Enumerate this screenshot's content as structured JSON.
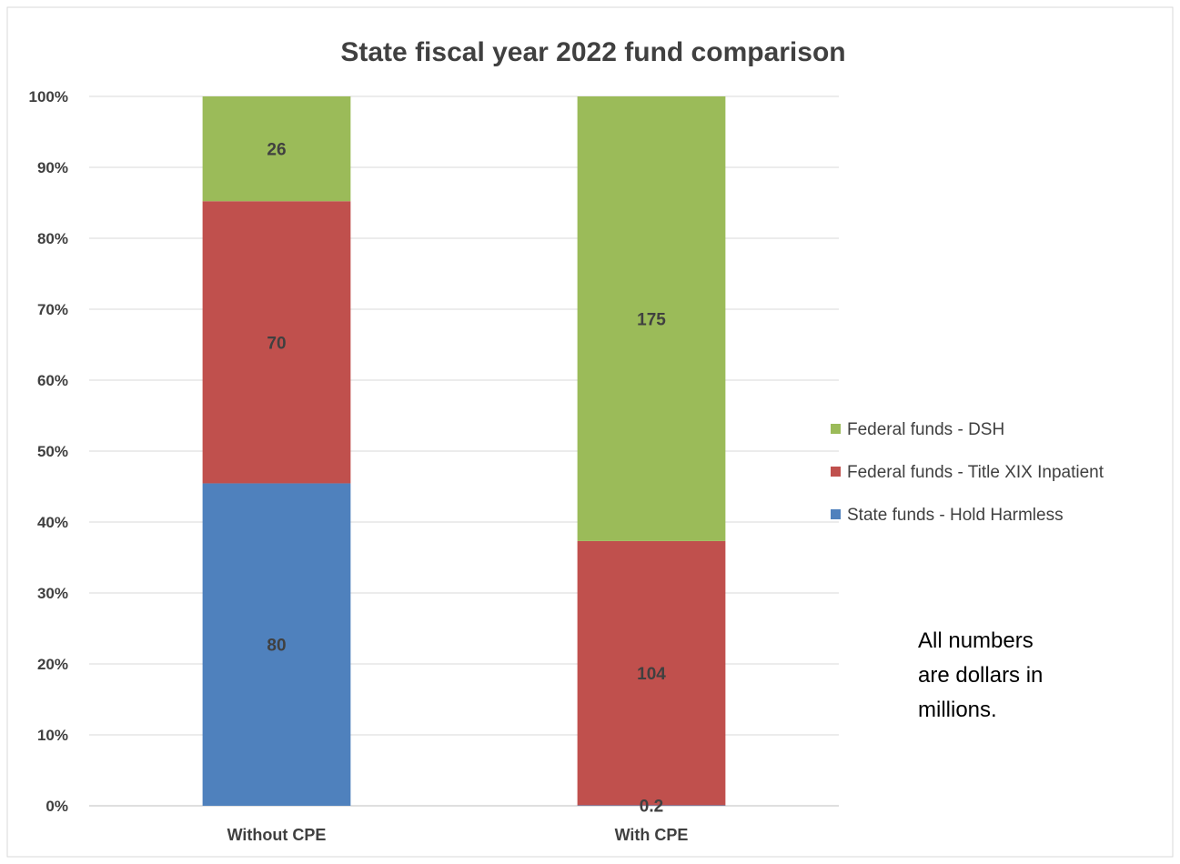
{
  "chart_data": {
    "type": "bar",
    "stacked": "percent",
    "title": "State fiscal year 2022 fund comparison",
    "categories": [
      "Without CPE",
      "With CPE"
    ],
    "series": [
      {
        "name": "State funds - Hold Harmless",
        "values": [
          80,
          0.2
        ],
        "labels": [
          "80",
          "0.2"
        ],
        "color": "#4f81bd"
      },
      {
        "name": "Federal funds - Title XIX Inpatient",
        "values": [
          70,
          104
        ],
        "labels": [
          "70",
          "104"
        ],
        "color": "#c0504d"
      },
      {
        "name": "Federal funds - DSH",
        "values": [
          26,
          175
        ],
        "labels": [
          "26",
          "175"
        ],
        "color": "#9bbb59"
      }
    ],
    "y_axis": {
      "ticks": [
        "0%",
        "10%",
        "20%",
        "30%",
        "40%",
        "50%",
        "60%",
        "70%",
        "80%",
        "90%",
        "100%"
      ],
      "ylim": [
        0,
        100
      ]
    },
    "grid": true,
    "legend_position": "right",
    "legend_order": [
      "Federal funds - DSH",
      "Federal funds - Title XIX Inpatient",
      "State funds - Hold Harmless"
    ],
    "note": [
      "All numbers",
      "are dollars in",
      "millions."
    ],
    "colors": {
      "gridline": "#d9d9d9",
      "axis_line": "#bfbfbf",
      "text": "#404040",
      "frame": "#d9d9d9"
    }
  }
}
